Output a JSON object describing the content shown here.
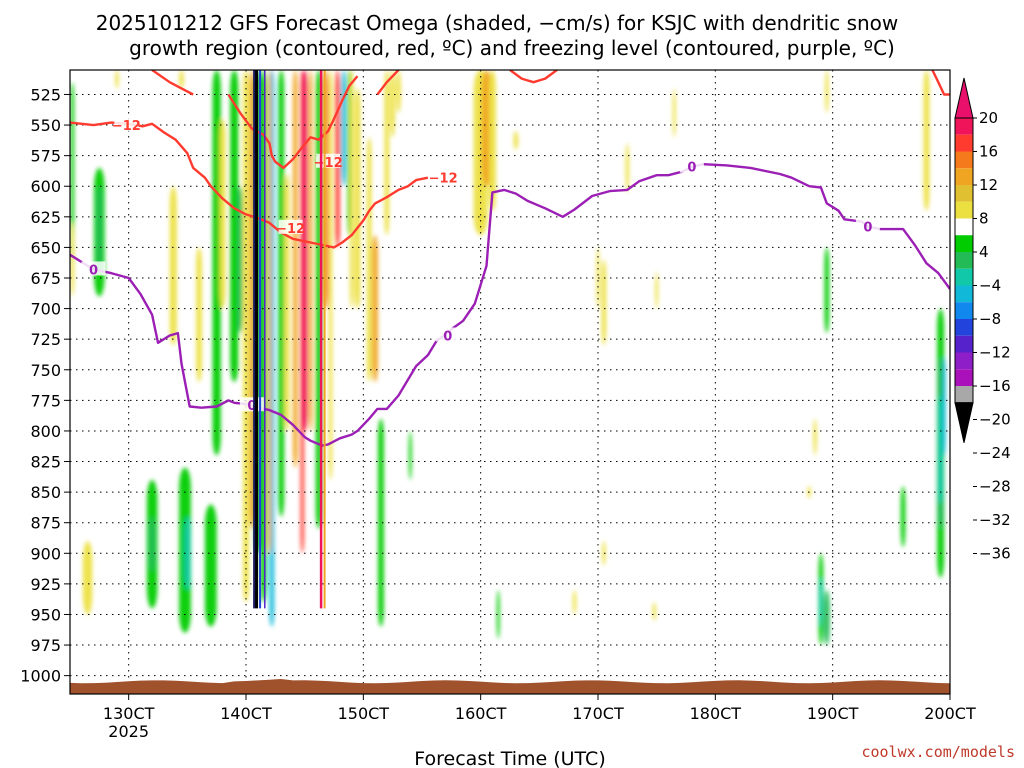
{
  "title": {
    "line1": "2025101212 GFS Forecast Omega (shaded, −cm/s) for KSJC with dendritic snow",
    "line2": "growth region (contoured, red, ºC) and freezing level (contoured, purple, ºC)"
  },
  "credit": "coolwx.com/models",
  "chart_data": {
    "type": "heatmap",
    "xlabel": "Forecast Time (UTC)",
    "ylabel": "",
    "xlim": [
      12.5,
      20.0
    ],
    "ylim": [
      1015,
      505
    ],
    "y_ticks": [
      525,
      550,
      575,
      600,
      625,
      650,
      675,
      700,
      725,
      750,
      775,
      800,
      825,
      850,
      875,
      900,
      925,
      950,
      975,
      1000
    ],
    "x_ticks": [
      {
        "value": 13,
        "label": "130CT",
        "sub": "2025"
      },
      {
        "value": 14,
        "label": "140CT",
        "sub": ""
      },
      {
        "value": 15,
        "label": "150CT",
        "sub": ""
      },
      {
        "value": 16,
        "label": "160CT",
        "sub": ""
      },
      {
        "value": 17,
        "label": "170CT",
        "sub": ""
      },
      {
        "value": 18,
        "label": "180CT",
        "sub": ""
      },
      {
        "value": 19,
        "label": "190CT",
        "sub": ""
      },
      {
        "value": 20,
        "label": "200CT",
        "sub": ""
      }
    ],
    "colorbar": {
      "labels": [
        "20",
        "16",
        "12",
        "8",
        "4",
        "−4",
        "−8",
        "−12",
        "−16",
        "−20",
        "−24",
        "−28",
        "−32",
        "−36"
      ],
      "bands": [
        "#f0145a",
        "#ff3b30",
        "#f47a1c",
        "#f0a522",
        "#e0c030",
        "#ece040",
        "#ffffff",
        "#00cc00",
        "#22bb55",
        "#11c8a8",
        "#11b8d8",
        "#1188ee",
        "#2244dd",
        "#5522cc",
        "#8e1fc8",
        "#aa11bb",
        "#a8a8a8"
      ],
      "top_color": "#e8106a",
      "bottom_color": "#000000"
    },
    "freezing_level": {
      "label": "0",
      "color": "#9b1fb5",
      "points": [
        [
          12.5,
          656
        ],
        [
          12.7,
          668
        ],
        [
          12.85,
          671
        ],
        [
          13.0,
          675
        ],
        [
          13.1,
          688
        ],
        [
          13.2,
          705
        ],
        [
          13.25,
          728
        ],
        [
          13.35,
          722
        ],
        [
          13.42,
          720
        ],
        [
          13.45,
          745
        ],
        [
          13.52,
          780
        ],
        [
          13.62,
          781
        ],
        [
          13.75,
          780
        ],
        [
          13.85,
          775
        ],
        [
          13.9,
          777
        ],
        [
          14.0,
          778
        ],
        [
          14.1,
          781
        ],
        [
          14.2,
          783
        ],
        [
          14.3,
          787
        ],
        [
          14.4,
          795
        ],
        [
          14.5,
          805
        ],
        [
          14.55,
          808
        ],
        [
          14.65,
          812
        ],
        [
          14.7,
          811
        ],
        [
          14.8,
          806
        ],
        [
          14.9,
          803
        ],
        [
          14.95,
          800
        ],
        [
          15.05,
          790
        ],
        [
          15.12,
          782
        ],
        [
          15.2,
          782
        ],
        [
          15.3,
          771
        ],
        [
          15.45,
          747
        ],
        [
          15.55,
          738
        ],
        [
          15.62,
          727
        ],
        [
          15.75,
          717
        ],
        [
          15.85,
          710
        ],
        [
          15.95,
          696
        ],
        [
          16.05,
          665
        ],
        [
          16.1,
          605
        ],
        [
          16.2,
          603
        ],
        [
          16.3,
          606
        ],
        [
          16.4,
          612
        ],
        [
          16.55,
          618
        ],
        [
          16.7,
          625
        ],
        [
          16.8,
          619
        ],
        [
          16.95,
          608
        ],
        [
          17.1,
          604
        ],
        [
          17.25,
          603
        ],
        [
          17.35,
          596
        ],
        [
          17.5,
          591
        ],
        [
          17.6,
          591
        ],
        [
          17.72,
          588
        ],
        [
          17.8,
          584
        ],
        [
          17.9,
          582
        ],
        [
          18.1,
          583
        ],
        [
          18.3,
          585
        ],
        [
          18.55,
          590
        ],
        [
          18.65,
          593
        ],
        [
          18.8,
          600
        ],
        [
          18.9,
          601
        ],
        [
          18.95,
          614
        ],
        [
          19.05,
          620
        ],
        [
          19.1,
          627
        ],
        [
          19.25,
          629
        ],
        [
          19.3,
          633
        ],
        [
          19.4,
          635
        ],
        [
          19.6,
          635
        ],
        [
          19.7,
          648
        ],
        [
          19.8,
          663
        ],
        [
          19.9,
          671
        ],
        [
          20.0,
          684
        ]
      ]
    },
    "dgz_contours": {
      "label": "−12",
      "color": "#ff3b30",
      "lines": [
        [
          [
            12.5,
            548
          ],
          [
            12.7,
            550
          ],
          [
            12.85,
            548
          ],
          [
            13.0,
            549
          ],
          [
            13.12,
            551
          ],
          [
            13.2,
            549
          ],
          [
            13.3,
            556
          ],
          [
            13.4,
            562
          ],
          [
            13.5,
            573
          ],
          [
            13.55,
            585
          ],
          [
            13.65,
            593
          ],
          [
            13.7,
            600
          ],
          [
            13.8,
            610
          ],
          [
            13.9,
            618
          ],
          [
            14.0,
            623
          ],
          [
            14.1,
            626
          ],
          [
            14.2,
            630
          ],
          [
            14.3,
            638
          ],
          [
            14.4,
            643
          ],
          [
            14.55,
            646
          ],
          [
            14.65,
            648
          ],
          [
            14.75,
            650
          ],
          [
            14.82,
            646
          ],
          [
            14.9,
            640
          ],
          [
            15.0,
            628
          ],
          [
            15.05,
            620
          ],
          [
            15.1,
            614
          ],
          [
            15.2,
            609
          ],
          [
            15.3,
            603
          ],
          [
            15.38,
            600
          ],
          [
            15.45,
            595
          ],
          [
            15.55,
            593
          ]
        ],
        [
          [
            13.85,
            525
          ],
          [
            13.95,
            540
          ],
          [
            14.05,
            553
          ],
          [
            14.15,
            558
          ],
          [
            14.2,
            565
          ],
          [
            14.22,
            575
          ],
          [
            14.25,
            580
          ],
          [
            14.32,
            585
          ],
          [
            14.4,
            578
          ],
          [
            14.48,
            568
          ],
          [
            14.55,
            560
          ],
          [
            14.62,
            562
          ],
          [
            14.7,
            555
          ],
          [
            14.75,
            545
          ],
          [
            14.82,
            530
          ],
          [
            14.88,
            518
          ],
          [
            14.95,
            510
          ]
        ],
        [
          [
            13.2,
            505
          ],
          [
            13.35,
            515
          ],
          [
            13.45,
            520
          ],
          [
            13.55,
            525
          ]
        ],
        [
          [
            15.3,
            505
          ],
          [
            15.2,
            515
          ],
          [
            15.12,
            525
          ]
        ],
        [
          [
            16.25,
            505
          ],
          [
            16.35,
            512
          ],
          [
            16.45,
            515
          ],
          [
            16.55,
            512
          ],
          [
            16.65,
            505
          ]
        ],
        [
          [
            19.85,
            505
          ],
          [
            19.9,
            515
          ],
          [
            19.95,
            525
          ],
          [
            20.0,
            525
          ]
        ]
      ]
    },
    "terrain": {
      "color": "#a0522d",
      "top_pressure": 1005
    }
  }
}
